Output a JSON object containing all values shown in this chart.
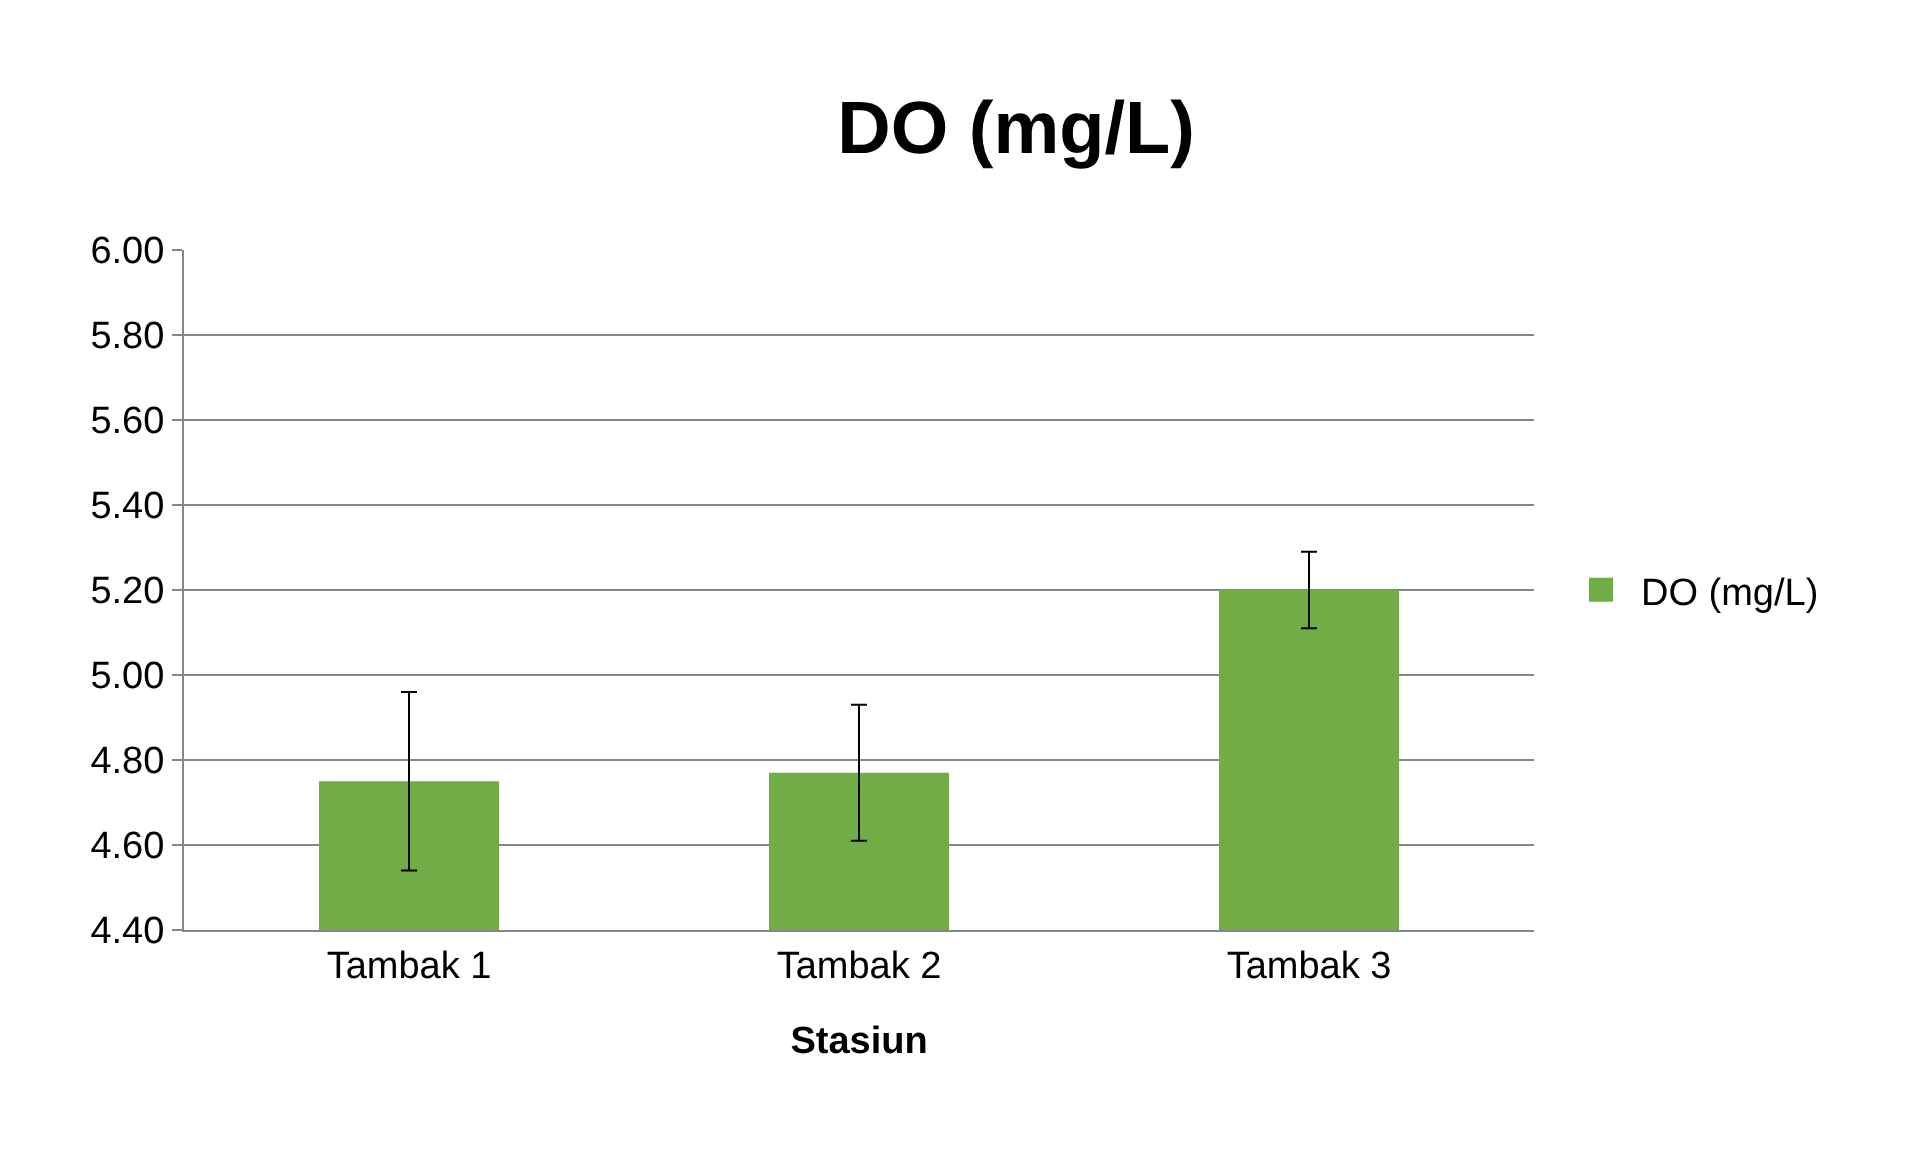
{
  "chart_data": {
    "type": "bar",
    "title": "DO (mg/L)",
    "xlabel": "Stasiun",
    "categories": [
      "Tambak 1",
      "Tambak 2",
      "Tambak 3"
    ],
    "series": [
      {
        "name": "DO (mg/L)",
        "color": "#70ad47",
        "values": [
          4.75,
          4.77,
          5.2
        ],
        "errors": [
          0.21,
          0.16,
          0.09
        ]
      }
    ],
    "ylim": [
      4.4,
      6.0
    ],
    "yticks": [
      {
        "value": 4.4,
        "label": "4.40"
      },
      {
        "value": 4.6,
        "label": "4.60"
      },
      {
        "value": 4.8,
        "label": "4.80"
      },
      {
        "value": 5.0,
        "label": "5.00"
      },
      {
        "value": 5.2,
        "label": "5.20"
      },
      {
        "value": 5.4,
        "label": "5.40"
      },
      {
        "value": 5.6,
        "label": "5.60"
      },
      {
        "value": 5.8,
        "label": "5.80"
      },
      {
        "value": 6.0,
        "label": "6.00"
      }
    ],
    "grid": "y",
    "legend": "right"
  }
}
